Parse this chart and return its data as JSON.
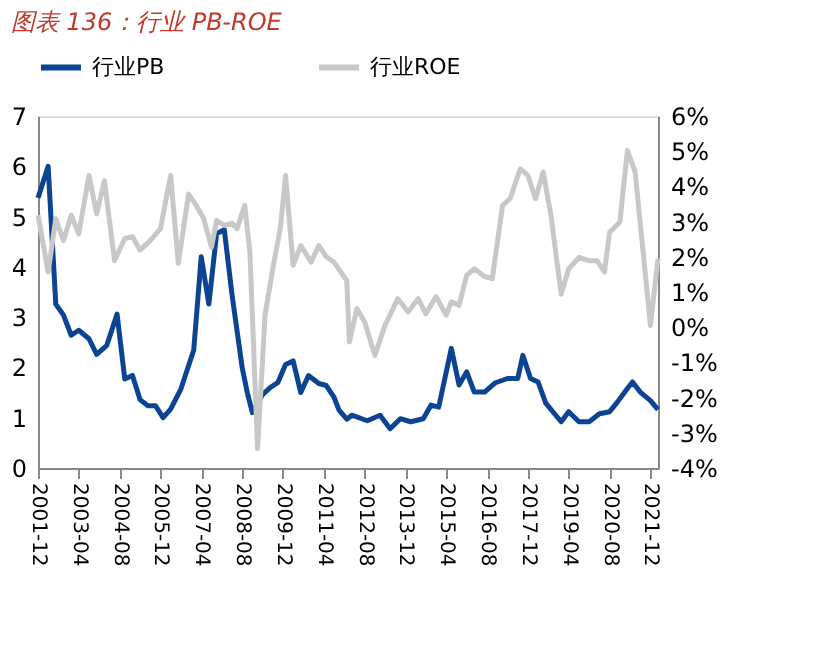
{
  "chart_data": {
    "type": "line",
    "title": "图表 136：行业 PB-ROE",
    "xlim": [
      "2001-12",
      "2022-03"
    ],
    "xticks": [
      "2001-12",
      "2003-04",
      "2004-08",
      "2005-12",
      "2007-04",
      "2008-08",
      "2009-12",
      "2011-04",
      "2012-08",
      "2013-12",
      "2015-04",
      "2016-08",
      "2017-12",
      "2019-04",
      "2020-08",
      "2021-12"
    ],
    "ylim": [
      0,
      7
    ],
    "yticks": [
      0,
      1,
      2,
      3,
      4,
      5,
      6,
      7
    ],
    "y2lim": [
      -4,
      6
    ],
    "y2ticks": [
      {
        "value": -4,
        "label": "-4%"
      },
      {
        "value": -3,
        "label": "-3%"
      },
      {
        "value": -2,
        "label": "-2%"
      },
      {
        "value": -1,
        "label": "-1%"
      },
      {
        "value": 0,
        "label": "0%"
      },
      {
        "value": 1,
        "label": "1%"
      },
      {
        "value": 2,
        "label": "2%"
      },
      {
        "value": 3,
        "label": "3%"
      },
      {
        "value": 4,
        "label": "4%"
      },
      {
        "value": 5,
        "label": "5%"
      },
      {
        "value": 6,
        "label": "6%"
      }
    ],
    "grid": false,
    "legend": "top",
    "line_style": "solid",
    "marker": "none",
    "series": [
      {
        "name": "行业PB",
        "color": "#0c4493",
        "x": [
          "2001-12",
          "2002-04",
          "2002-07",
          "2002-10",
          "2003-01",
          "2003-04",
          "2003-08",
          "2003-11",
          "2004-03",
          "2004-07",
          "2004-10",
          "2005-01",
          "2005-04",
          "2005-07",
          "2005-10",
          "2006-01",
          "2006-04",
          "2006-08",
          "2007-01",
          "2007-04",
          "2007-07",
          "2007-10",
          "2008-01",
          "2008-04",
          "2008-08",
          "2008-10",
          "2008-12",
          "2009-04",
          "2009-07",
          "2009-10",
          "2010-01",
          "2010-04",
          "2010-07",
          "2010-10",
          "2011-02",
          "2011-05",
          "2011-08",
          "2011-10",
          "2012-01",
          "2012-03",
          "2012-09",
          "2013-02",
          "2013-06",
          "2013-10",
          "2014-02",
          "2014-07",
          "2014-10",
          "2015-01",
          "2015-06",
          "2015-09",
          "2015-12",
          "2016-03",
          "2016-07",
          "2016-11",
          "2017-04",
          "2017-08",
          "2017-10",
          "2018-01",
          "2018-04",
          "2018-07",
          "2019-01",
          "2019-04",
          "2019-08",
          "2019-12",
          "2020-04",
          "2020-08",
          "2020-11",
          "2021-03",
          "2021-05",
          "2021-08",
          "2021-12",
          "2022-03"
        ],
        "values": [
          5.37,
          6.0,
          3.26,
          3.04,
          2.64,
          2.74,
          2.57,
          2.26,
          2.44,
          3.06,
          1.77,
          1.84,
          1.36,
          1.24,
          1.24,
          1.0,
          1.17,
          1.57,
          2.34,
          4.2,
          3.26,
          4.66,
          4.74,
          3.46,
          2.0,
          1.5,
          1.1,
          1.46,
          1.6,
          1.7,
          2.06,
          2.13,
          1.5,
          1.84,
          1.68,
          1.64,
          1.41,
          1.15,
          0.97,
          1.05,
          0.94,
          1.05,
          0.78,
          0.98,
          0.92,
          0.98,
          1.25,
          1.21,
          2.38,
          1.65,
          1.91,
          1.51,
          1.51,
          1.69,
          1.78,
          1.78,
          2.24,
          1.78,
          1.71,
          1.29,
          0.92,
          1.12,
          0.92,
          0.92,
          1.08,
          1.12,
          1.31,
          1.58,
          1.71,
          1.51,
          1.34,
          1.16
        ]
      },
      {
        "name": "行业ROE",
        "color": "#c8c8c8",
        "axis": "y2",
        "x": [
          "2001-12",
          "2002-04",
          "2002-07",
          "2002-10",
          "2003-01",
          "2003-04",
          "2003-08",
          "2003-11",
          "2004-02",
          "2004-06",
          "2004-10",
          "2005-01",
          "2005-04",
          "2005-08",
          "2005-12",
          "2006-04",
          "2006-07",
          "2006-11",
          "2007-02",
          "2007-05",
          "2007-08",
          "2007-10",
          "2008-01",
          "2008-04",
          "2008-06",
          "2008-09",
          "2008-11",
          "2009-02",
          "2009-05",
          "2009-08",
          "2009-11",
          "2010-01",
          "2010-04",
          "2010-07",
          "2010-11",
          "2011-02",
          "2011-05",
          "2011-08",
          "2012-01",
          "2012-02",
          "2012-05",
          "2012-08",
          "2012-12",
          "2013-04",
          "2013-09",
          "2014-01",
          "2014-05",
          "2014-08",
          "2014-12",
          "2015-04",
          "2015-06",
          "2015-09",
          "2015-12",
          "2016-03",
          "2016-07",
          "2016-10",
          "2017-02",
          "2017-05",
          "2017-09",
          "2017-12",
          "2018-03",
          "2018-06",
          "2018-09",
          "2019-01",
          "2019-04",
          "2019-08",
          "2019-12",
          "2020-03",
          "2020-06",
          "2020-08",
          "2020-12",
          "2021-03",
          "2021-06",
          "2021-09",
          "2021-12",
          "2022-03"
        ],
        "values": [
          3.18,
          1.57,
          3.08,
          2.46,
          3.18,
          2.65,
          4.31,
          3.22,
          4.16,
          1.89,
          2.52,
          2.57,
          2.19,
          2.46,
          2.8,
          4.31,
          1.81,
          3.78,
          3.46,
          3.08,
          2.27,
          3.03,
          2.89,
          2.95,
          2.8,
          3.46,
          2.14,
          -3.45,
          0.34,
          1.66,
          2.84,
          4.31,
          1.76,
          2.32,
          1.85,
          2.32,
          2.0,
          1.85,
          1.32,
          -0.42,
          0.53,
          0.15,
          -0.8,
          0.05,
          0.81,
          0.43,
          0.81,
          0.38,
          0.87,
          0.34,
          0.72,
          0.62,
          1.47,
          1.66,
          1.44,
          1.38,
          3.46,
          3.65,
          4.5,
          4.31,
          3.65,
          4.41,
          3.18,
          0.94,
          1.66,
          1.98,
          1.89,
          1.89,
          1.57,
          2.7,
          2.99,
          5.02,
          4.41,
          2.23,
          0.05,
          1.95
        ]
      }
    ]
  }
}
